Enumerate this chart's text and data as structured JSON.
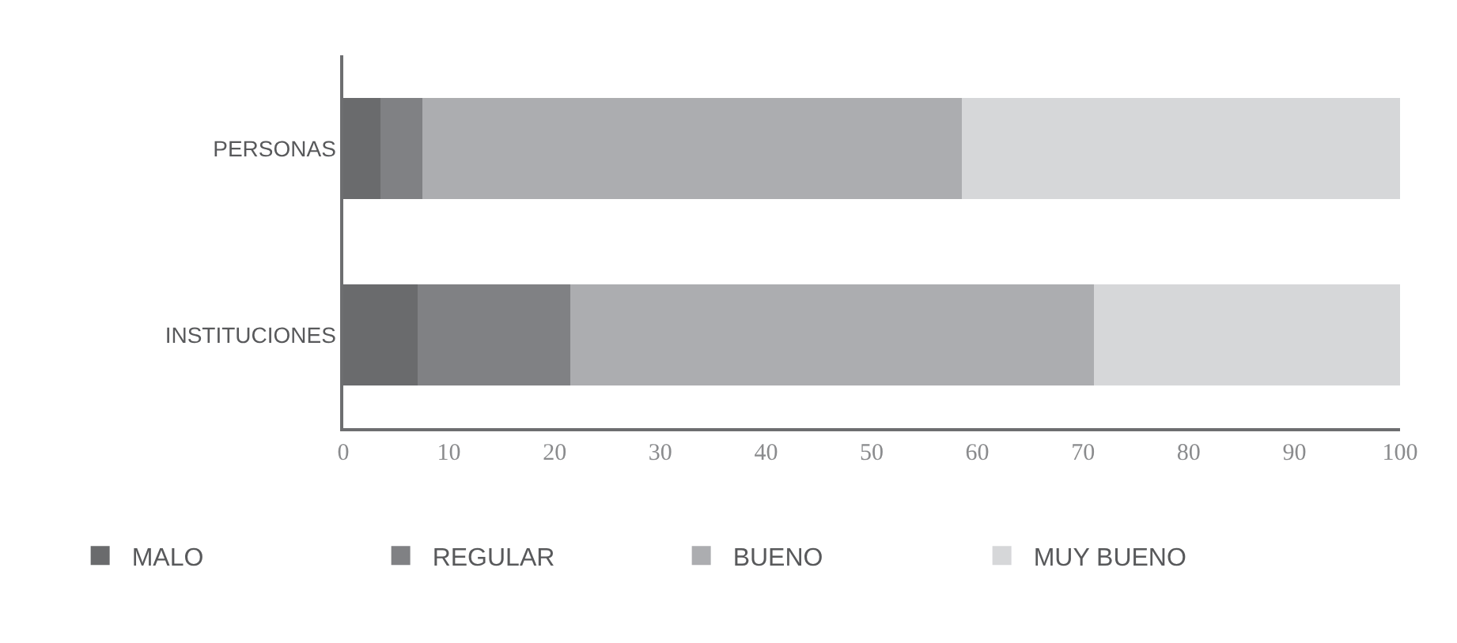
{
  "chart_data": {
    "type": "bar",
    "orientation": "horizontal",
    "stacked": true,
    "categories": [
      "PERSONAS",
      "INSTITUCIONES"
    ],
    "series": [
      {
        "name": "MALO",
        "color": "#6a6b6d",
        "values": [
          3.5,
          7
        ]
      },
      {
        "name": "REGULAR",
        "color": "#808184",
        "values": [
          4,
          14.5
        ]
      },
      {
        "name": "BUENO",
        "color": "#acadb0",
        "values": [
          51,
          49.5
        ]
      },
      {
        "name": "MUY BUENO",
        "color": "#d6d7d9",
        "values": [
          41.5,
          29
        ]
      }
    ],
    "xlim": [
      0,
      100
    ],
    "xticks": [
      0,
      10,
      20,
      30,
      40,
      50,
      60,
      70,
      80,
      90,
      100
    ],
    "legend": "bottom"
  }
}
